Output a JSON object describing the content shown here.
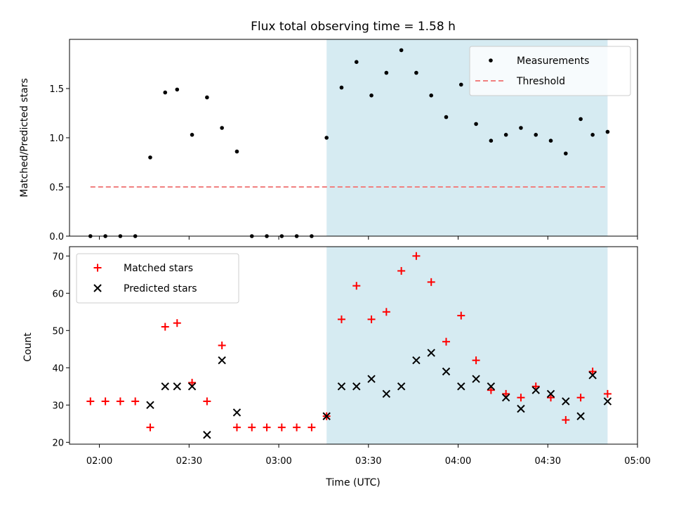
{
  "chart_data": {
    "title": "Flux total observing time = 1.58 h",
    "xlabel": "Time (UTC)",
    "x_ticks": [
      "02:00",
      "02:30",
      "03:00",
      "03:30",
      "04:00",
      "04:30",
      "05:00"
    ],
    "x_range": [
      "01:50",
      "05:00"
    ],
    "highlight_span": {
      "start": "03:16",
      "end": "04:50",
      "color": "#add8e6"
    },
    "x": [
      "01:57",
      "02:02",
      "02:07",
      "02:12",
      "02:17",
      "02:22",
      "02:26",
      "02:31",
      "02:36",
      "02:41",
      "02:46",
      "02:51",
      "02:56",
      "03:01",
      "03:06",
      "03:11",
      "03:16",
      "03:21",
      "03:26",
      "03:31",
      "03:36",
      "03:41",
      "03:46",
      "03:51",
      "03:56",
      "04:01",
      "04:06",
      "04:11",
      "04:16",
      "04:21",
      "04:26",
      "04:31",
      "04:36",
      "04:41",
      "04:45",
      "04:50"
    ],
    "panels": [
      {
        "type": "scatter",
        "ylabel": "Matched/Predicted stars",
        "ylim": [
          0,
          2.0
        ],
        "y_ticks": [
          "0.0",
          "0.5",
          "1.0",
          "1.5"
        ],
        "legend_position": "upper right",
        "series": [
          {
            "name": "Measurements",
            "marker": "dot",
            "color": "#000000",
            "values": [
              0,
              0,
              0,
              0,
              0.8,
              1.46,
              1.49,
              1.03,
              1.41,
              1.1,
              0.86,
              0,
              0,
              0,
              0,
              0,
              1.0,
              1.51,
              1.77,
              1.43,
              1.66,
              1.89,
              1.66,
              1.43,
              1.21,
              1.54,
              1.14,
              0.97,
              1.03,
              1.1,
              1.03,
              0.97,
              0.84,
              1.19,
              1.03,
              1.06
            ]
          }
        ],
        "threshold": {
          "name": "Threshold",
          "value": 0.5,
          "style": "dashed",
          "color": "#f08080",
          "x_start": "01:57",
          "x_end": "04:50"
        }
      },
      {
        "type": "scatter",
        "ylabel": "Count",
        "ylim": [
          19.5,
          72.5
        ],
        "y_ticks": [
          "20",
          "30",
          "40",
          "50",
          "60",
          "70"
        ],
        "legend_position": "upper left",
        "series": [
          {
            "name": "Matched stars",
            "marker": "plus",
            "color": "#ff0000",
            "values": [
              31,
              31,
              31,
              31,
              24,
              51,
              52,
              36,
              31,
              46,
              24,
              24,
              24,
              24,
              24,
              24,
              27,
              53,
              62,
              53,
              55,
              66,
              70,
              63,
              47,
              54,
              42,
              34,
              33,
              32,
              35,
              32,
              26,
              32,
              39,
              33
            ]
          },
          {
            "name": "Predicted stars",
            "marker": "x",
            "color": "#000000",
            "values": [
              null,
              null,
              null,
              null,
              30,
              35,
              35,
              35,
              22,
              42,
              28,
              null,
              null,
              null,
              null,
              null,
              27,
              35,
              35,
              37,
              33,
              35,
              42,
              44,
              39,
              35,
              37,
              35,
              32,
              29,
              34,
              33,
              31,
              27,
              38,
              31
            ]
          }
        ]
      }
    ]
  }
}
